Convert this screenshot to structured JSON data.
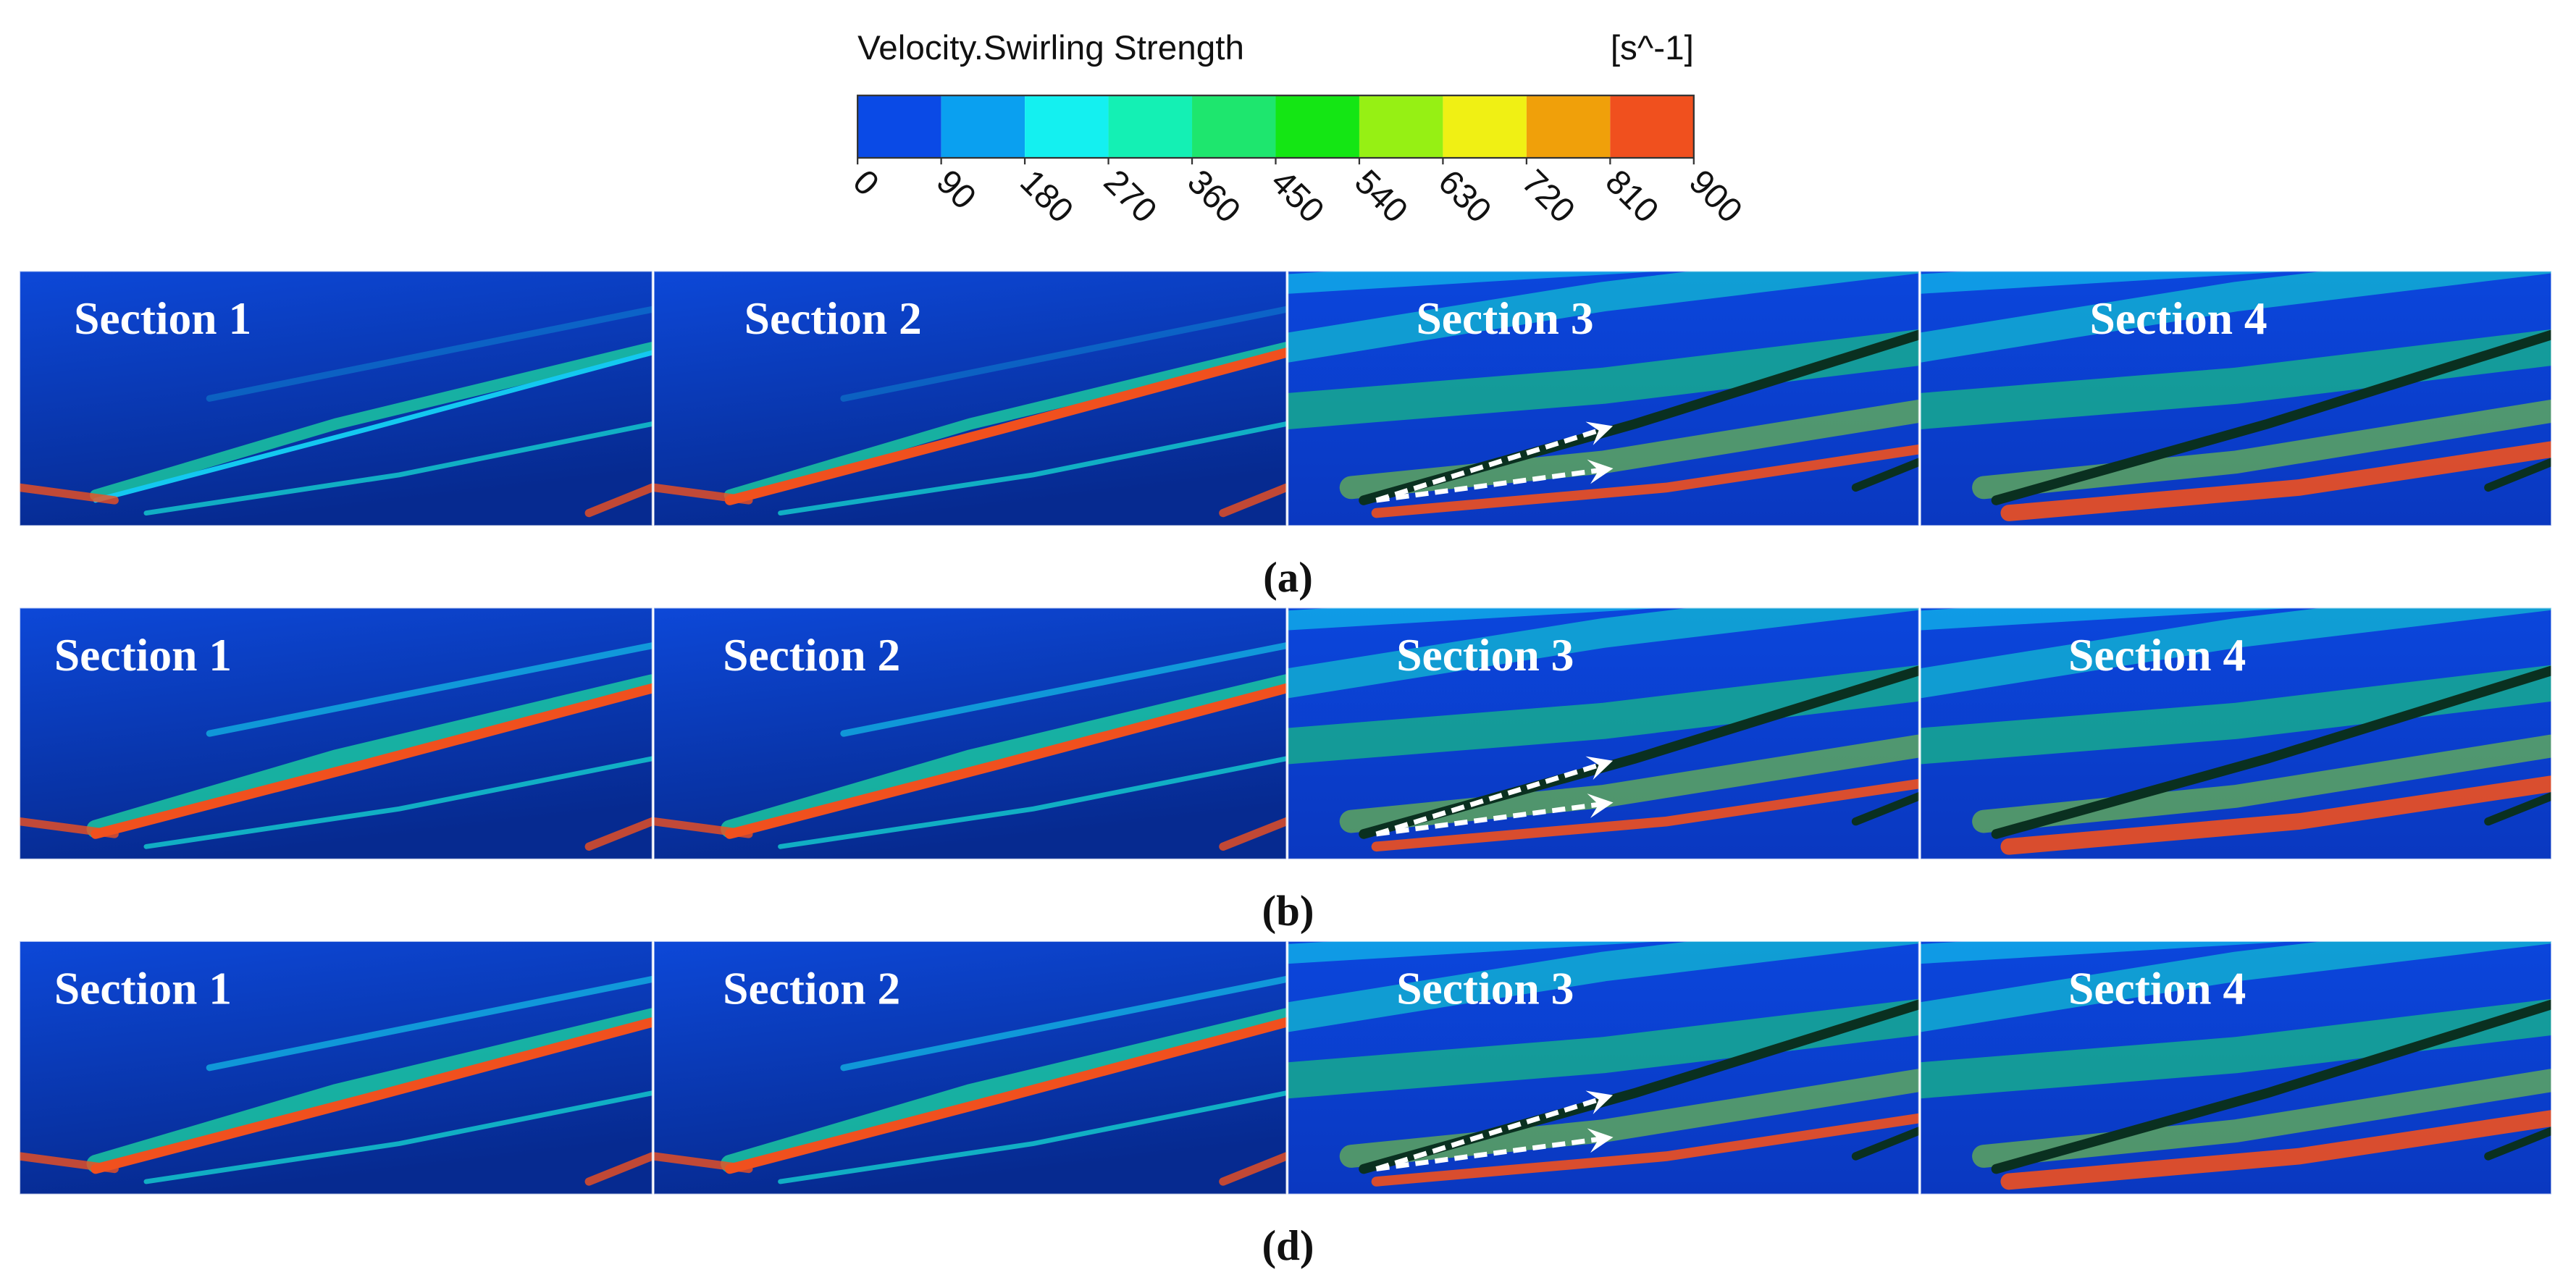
{
  "colorbar": {
    "title": "Velocity.Swirling Strength",
    "unit": "[s^-1]",
    "ticks": [
      0,
      90,
      180,
      270,
      360,
      450,
      540,
      630,
      720,
      810,
      900
    ],
    "colors": [
      "#0a4ae6",
      "#0aa0f0",
      "#14f0f0",
      "#14f0b4",
      "#1ee66e",
      "#14e614",
      "#96f014",
      "#f0f014",
      "#f0a00a",
      "#f0501e"
    ]
  },
  "rows": [
    {
      "label": "(a)",
      "sections": [
        "Section 1",
        "Section 2",
        "Section 3",
        "Section 4"
      ]
    },
    {
      "label": "(b)",
      "sections": [
        "Section 1",
        "Section 2",
        "Section 3",
        "Section 4"
      ]
    },
    {
      "label": "(d)",
      "sections": [
        "Section 1",
        "Section 2",
        "Section 3",
        "Section 4"
      ]
    }
  ]
}
